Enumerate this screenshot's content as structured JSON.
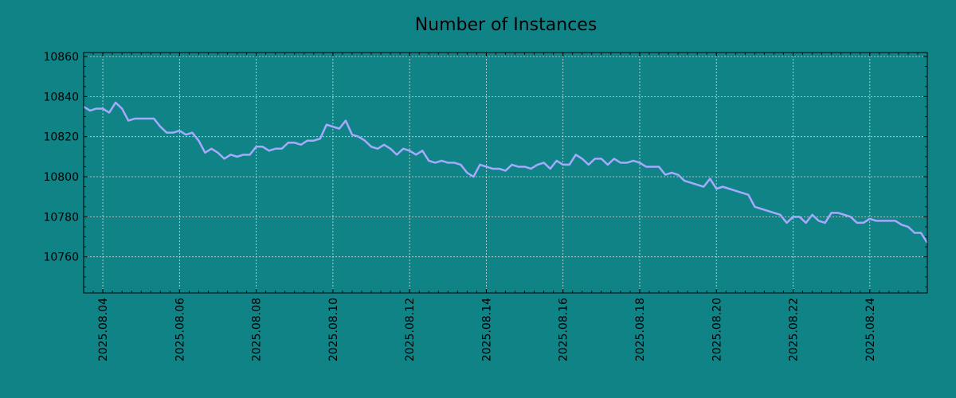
{
  "chart_data": {
    "type": "line",
    "title": "Number of Instances",
    "xlabel": "",
    "ylabel": "",
    "x_range": [
      "2025.08.03 12:00",
      "2025.08.25 12:00"
    ],
    "ylim": [
      10742,
      10862
    ],
    "y_ticks": [
      10760,
      10780,
      10800,
      10820,
      10840,
      10860
    ],
    "x_ticks": [
      "2025.08.04",
      "2025.08.06",
      "2025.08.08",
      "2025.08.10",
      "2025.08.12",
      "2025.08.14",
      "2025.08.16",
      "2025.08.18",
      "2025.08.20",
      "2025.08.22",
      "2025.08.24"
    ],
    "grid": true,
    "legend": "none",
    "colors": {
      "background": "#108387",
      "line": "#a5aaff",
      "grid": "#d9d9d9",
      "axis": "#000000"
    },
    "series": [
      {
        "x": [
          "2025.08.03 12:00",
          "2025.08.03 16:00",
          "2025.08.03 20:00",
          "2025.08.04 00:00",
          "2025.08.04 04:00",
          "2025.08.04 08:00",
          "2025.08.04 12:00",
          "2025.08.04 16:00",
          "2025.08.04 20:00",
          "2025.08.05 00:00",
          "2025.08.05 04:00",
          "2025.08.05 08:00",
          "2025.08.05 12:00",
          "2025.08.05 16:00",
          "2025.08.05 20:00",
          "2025.08.06 00:00",
          "2025.08.06 04:00",
          "2025.08.06 08:00",
          "2025.08.06 12:00",
          "2025.08.06 16:00",
          "2025.08.06 20:00",
          "2025.08.07 00:00",
          "2025.08.07 04:00",
          "2025.08.07 08:00",
          "2025.08.07 12:00",
          "2025.08.07 16:00",
          "2025.08.07 20:00",
          "2025.08.08 00:00",
          "2025.08.08 04:00",
          "2025.08.08 08:00",
          "2025.08.08 12:00",
          "2025.08.08 16:00",
          "2025.08.08 20:00",
          "2025.08.09 00:00",
          "2025.08.09 04:00",
          "2025.08.09 08:00",
          "2025.08.09 12:00",
          "2025.08.09 16:00",
          "2025.08.09 20:00",
          "2025.08.10 00:00",
          "2025.08.10 04:00",
          "2025.08.10 08:00",
          "2025.08.10 12:00",
          "2025.08.10 16:00",
          "2025.08.10 20:00",
          "2025.08.11 00:00",
          "2025.08.11 04:00",
          "2025.08.11 08:00",
          "2025.08.11 12:00",
          "2025.08.11 16:00",
          "2025.08.11 20:00",
          "2025.08.12 00:00",
          "2025.08.12 04:00",
          "2025.08.12 08:00",
          "2025.08.12 12:00",
          "2025.08.12 16:00",
          "2025.08.12 20:00",
          "2025.08.13 00:00",
          "2025.08.13 04:00",
          "2025.08.13 08:00",
          "2025.08.13 12:00",
          "2025.08.13 16:00",
          "2025.08.13 20:00",
          "2025.08.14 00:00",
          "2025.08.14 04:00",
          "2025.08.14 08:00",
          "2025.08.14 12:00",
          "2025.08.14 16:00",
          "2025.08.14 20:00",
          "2025.08.15 00:00",
          "2025.08.15 04:00",
          "2025.08.15 08:00",
          "2025.08.15 12:00",
          "2025.08.15 16:00",
          "2025.08.15 20:00",
          "2025.08.16 00:00",
          "2025.08.16 04:00",
          "2025.08.16 08:00",
          "2025.08.16 12:00",
          "2025.08.16 16:00",
          "2025.08.16 20:00",
          "2025.08.17 00:00",
          "2025.08.17 04:00",
          "2025.08.17 08:00",
          "2025.08.17 12:00",
          "2025.08.17 16:00",
          "2025.08.17 20:00",
          "2025.08.18 00:00",
          "2025.08.18 04:00",
          "2025.08.18 08:00",
          "2025.08.18 12:00",
          "2025.08.18 16:00",
          "2025.08.18 20:00",
          "2025.08.19 00:00",
          "2025.08.19 04:00",
          "2025.08.19 08:00",
          "2025.08.19 12:00",
          "2025.08.19 16:00",
          "2025.08.19 20:00",
          "2025.08.20 00:00",
          "2025.08.20 04:00",
          "2025.08.20 08:00",
          "2025.08.20 12:00",
          "2025.08.20 16:00",
          "2025.08.20 20:00",
          "2025.08.21 00:00",
          "2025.08.21 04:00",
          "2025.08.21 08:00",
          "2025.08.21 12:00",
          "2025.08.21 16:00",
          "2025.08.21 20:00",
          "2025.08.22 00:00",
          "2025.08.22 04:00",
          "2025.08.22 08:00",
          "2025.08.22 12:00",
          "2025.08.22 16:00",
          "2025.08.22 20:00",
          "2025.08.23 00:00",
          "2025.08.23 04:00",
          "2025.08.23 08:00",
          "2025.08.23 12:00",
          "2025.08.23 16:00",
          "2025.08.23 20:00",
          "2025.08.24 00:00",
          "2025.08.24 04:00",
          "2025.08.24 08:00",
          "2025.08.24 12:00",
          "2025.08.24 16:00",
          "2025.08.24 20:00",
          "2025.08.25 00:00",
          "2025.08.25 04:00",
          "2025.08.25 08:00",
          "2025.08.25 12:00"
        ],
        "y": [
          10835,
          10833,
          10834,
          10834,
          10832,
          10837,
          10834,
          10828,
          10829,
          10829,
          10829,
          10829,
          10825,
          10822,
          10822,
          10823,
          10821,
          10822,
          10818,
          10812,
          10814,
          10812,
          10809,
          10811,
          10810,
          10811,
          10811,
          10815,
          10815,
          10813,
          10814,
          10814,
          10817,
          10817,
          10816,
          10818,
          10818,
          10819,
          10826,
          10825,
          10824,
          10828,
          10821,
          10820,
          10818,
          10815,
          10814,
          10816,
          10814,
          10811,
          10814,
          10813,
          10811,
          10813,
          10808,
          10807,
          10808,
          10807,
          10807,
          10806,
          10802,
          10800,
          10806,
          10805,
          10804,
          10804,
          10803,
          10806,
          10805,
          10805,
          10804,
          10806,
          10807,
          10804,
          10808,
          10806,
          10806,
          10811,
          10809,
          10806,
          10809,
          10809,
          10806,
          10809,
          10807,
          10807,
          10808,
          10807,
          10805,
          10805,
          10805,
          10801,
          10802,
          10801,
          10798,
          10797,
          10796,
          10795,
          10799,
          10794,
          10795,
          10794,
          10793,
          10792,
          10791,
          10785,
          10784,
          10783,
          10782,
          10781,
          10777,
          10780,
          10780,
          10777,
          10781,
          10778,
          10777,
          10782,
          10782,
          10781,
          10780,
          10777,
          10777,
          10779,
          10778,
          10778,
          10778,
          10778,
          10776,
          10775,
          10772,
          10772,
          10767
        ]
      }
    ]
  }
}
